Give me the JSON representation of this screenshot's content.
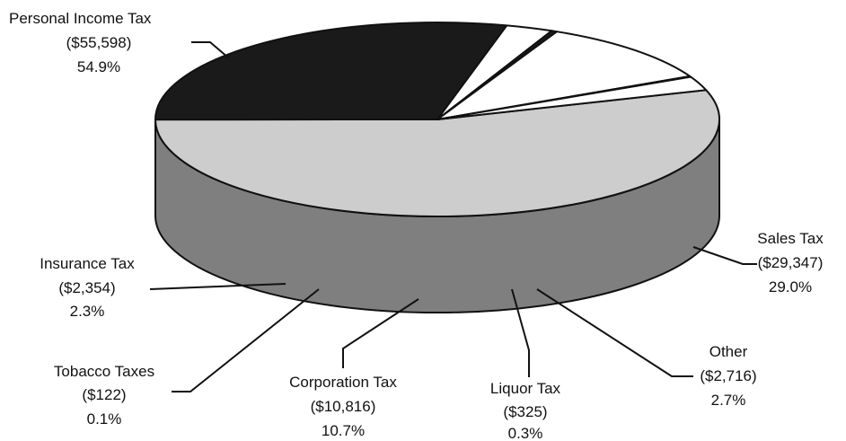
{
  "chart_data": {
    "type": "pie",
    "style": "3d",
    "slices": [
      {
        "name": "Personal Income Tax",
        "value": 55598,
        "value_label": "($55,598)",
        "percent_label": "54.9%",
        "color": "#cdcdcd",
        "side_color": "#7f7f7f"
      },
      {
        "name": "Sales Tax",
        "value": 29347,
        "value_label": "($29,347)",
        "percent_label": "29.0%",
        "color": "#1a1a1a",
        "side_color": "#1a1a1a"
      },
      {
        "name": "Other",
        "value": 2716,
        "value_label": "($2,716)",
        "percent_label": "2.7%",
        "color": "#ffffff",
        "side_color": "#a6a6a6"
      },
      {
        "name": "Liquor Tax",
        "value": 325,
        "value_label": "($325)",
        "percent_label": "0.3%",
        "color": "#1a1a1a",
        "side_color": "#1a1a1a"
      },
      {
        "name": "Corporation Tax",
        "value": 10816,
        "value_label": "($10,816)",
        "percent_label": "10.7%",
        "color": "#ffffff",
        "side_color": "#a6a6a6"
      },
      {
        "name": "Tobacco Taxes",
        "value": 122,
        "value_label": "($122)",
        "percent_label": "0.1%",
        "color": "#ffffff",
        "side_color": "#a6a6a6"
      },
      {
        "name": "Insurance Tax",
        "value": 2354,
        "value_label": "($2,354)",
        "percent_label": "2.3%",
        "color": "#ffffff",
        "side_color": "#a6a6a6"
      }
    ]
  }
}
